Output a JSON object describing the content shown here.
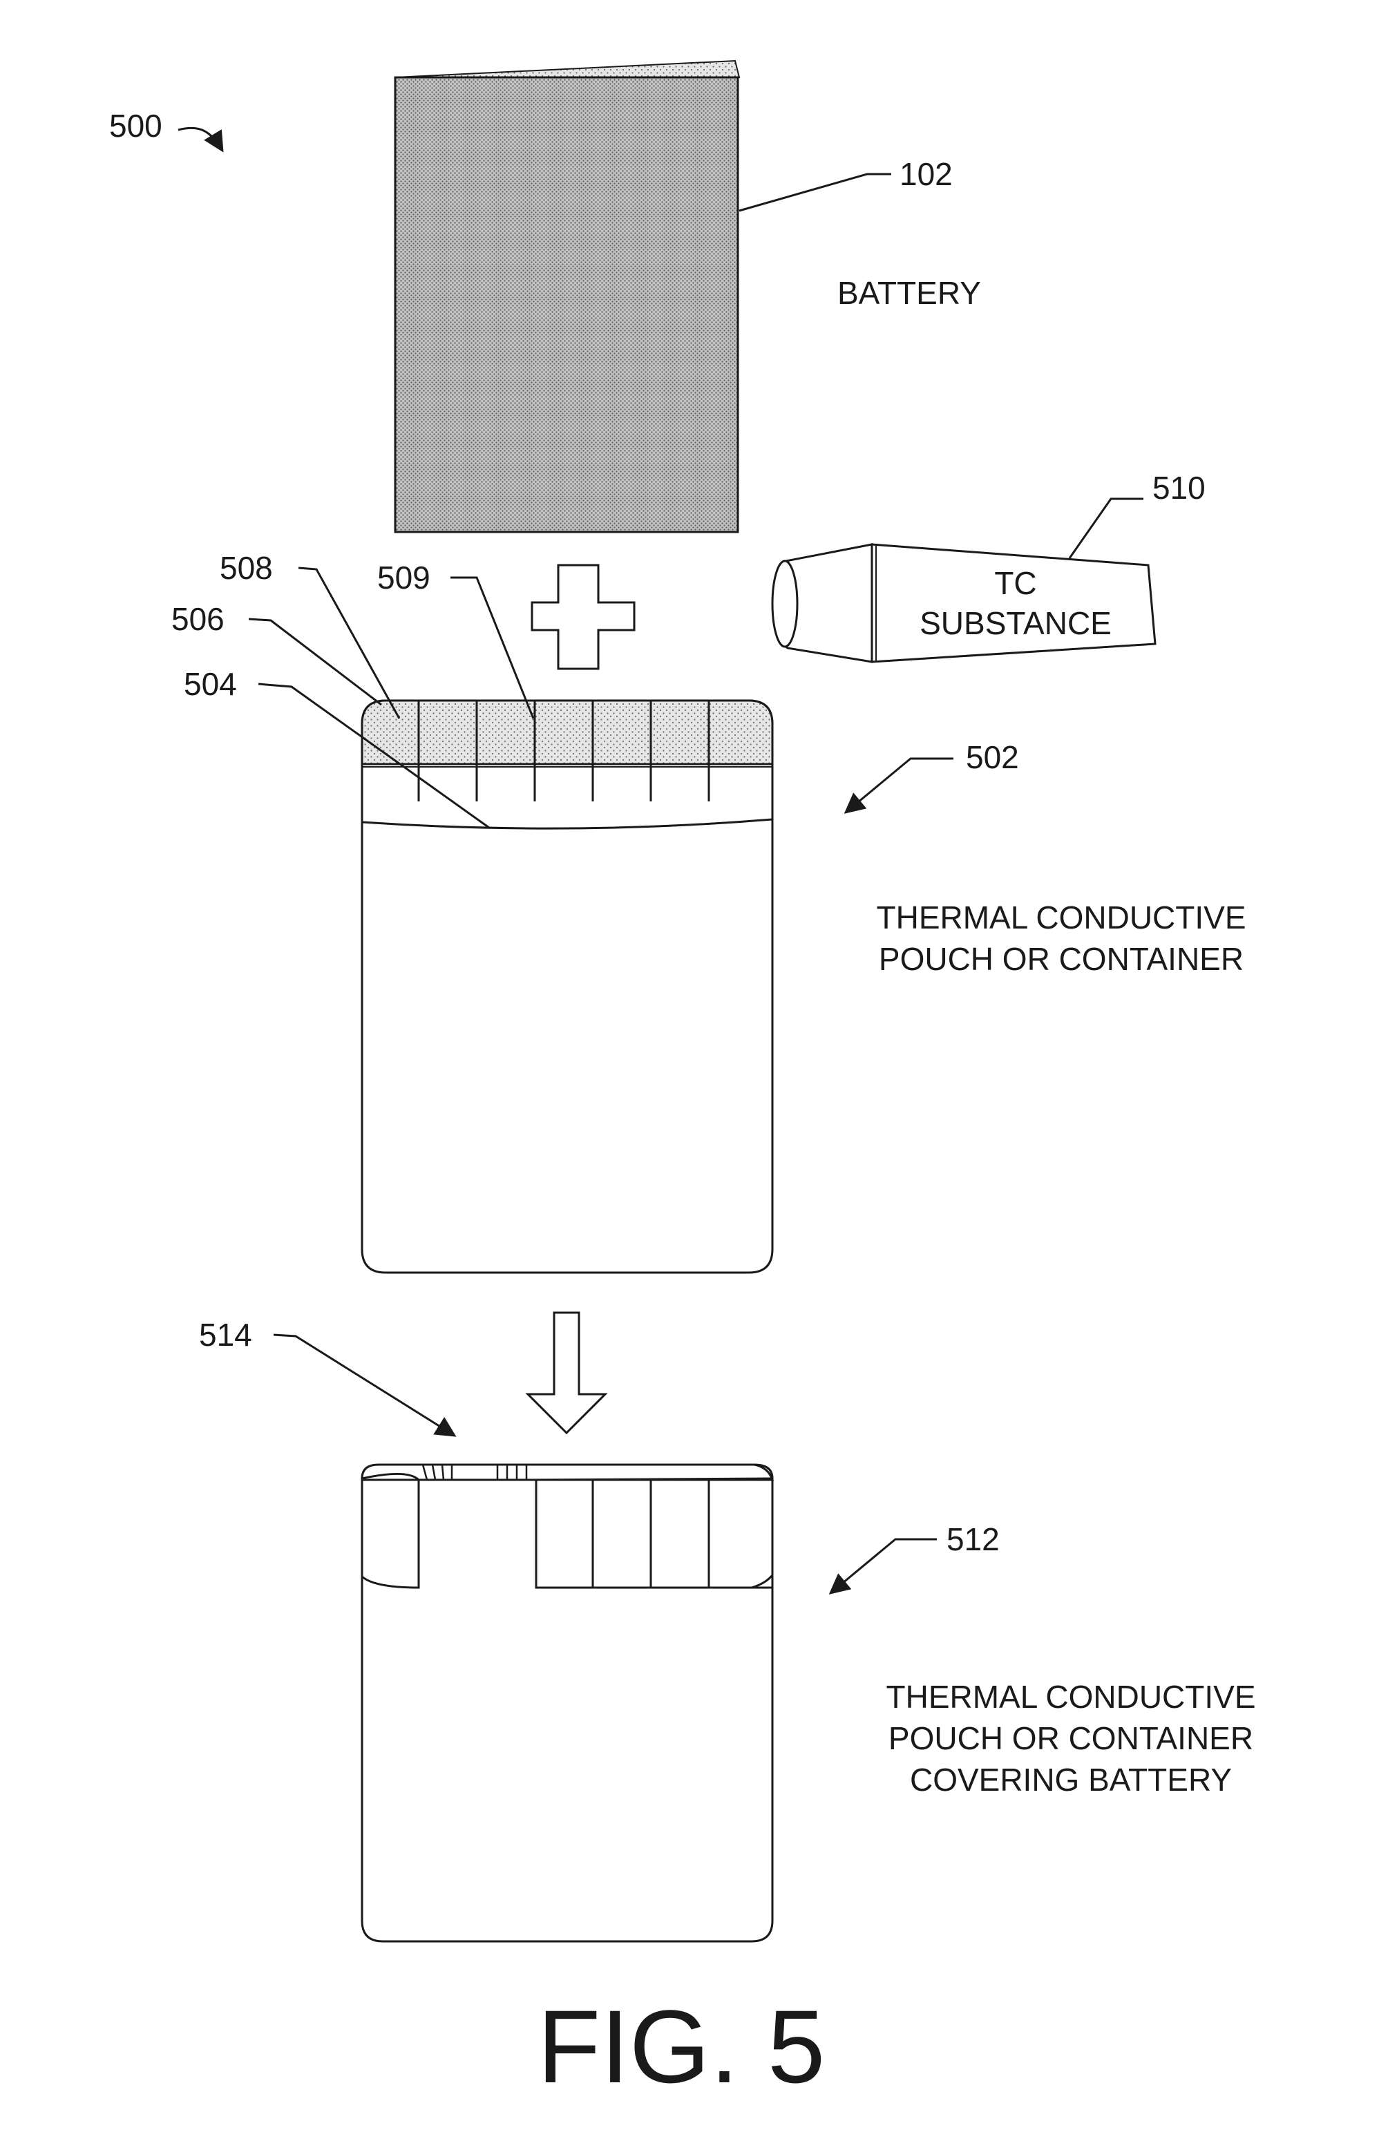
{
  "figure": {
    "overall_ref": "500",
    "title": "FIG. 5"
  },
  "battery": {
    "ref": "102",
    "label": "BATTERY"
  },
  "tc_substance": {
    "ref": "510",
    "label_line1": "TC",
    "label_line2": "SUBSTANCE"
  },
  "pouch_open": {
    "ref": "502",
    "label_line1": "THERMAL CONDUCTIVE",
    "label_line2": "POUCH OR CONTAINER",
    "ref_seal_region": "508",
    "ref_seal_segment": "509",
    "ref_flap": "506",
    "ref_opening": "504"
  },
  "pouch_sealed": {
    "ref": "512",
    "label_line1": "THERMAL CONDUCTIVE",
    "label_line2": "POUCH OR CONTAINER",
    "label_line3": "COVERING BATTERY",
    "ref_sealed_portion": "514"
  },
  "colors": {
    "ink": "#1a1a1a",
    "stipple_dark": "#b5b5b5",
    "stipple_light": "#d8d8d8",
    "background": "#ffffff"
  }
}
